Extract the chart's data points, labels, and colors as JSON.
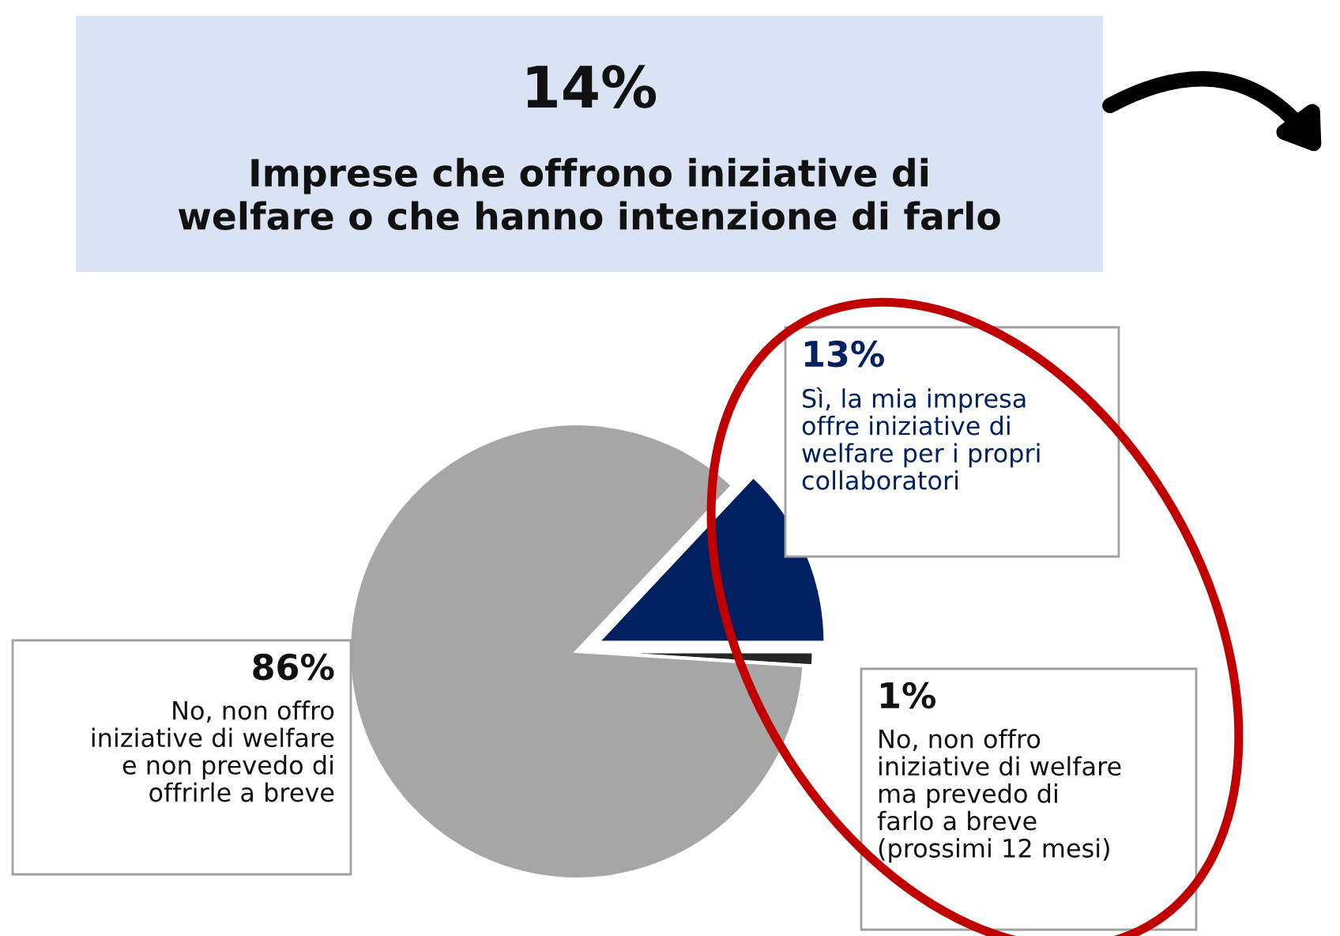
{
  "chart_data": {
    "type": "pie",
    "title": "14%",
    "subtitle": "Imprese che offrono iniziative di\nwelfare o che hanno intenzione di farlo",
    "categories": [
      "Sì, la mia impresa\noffre iniziative di\nwelfare per i propri\ncollaboratori",
      "No, non offro\niniziative di welfare\nma prevedo di\nfarlo a breve\n(prossimi 12 mesi)",
      "No, non offro\niniziative di welfare\ne non prevedo di\noffrirle a breve"
    ],
    "values": [
      13,
      1,
      86
    ],
    "colors": [
      "#002060",
      "#262626",
      "#a6a6a6"
    ],
    "value_labels": [
      "13%",
      "1%",
      "86%"
    ]
  }
}
